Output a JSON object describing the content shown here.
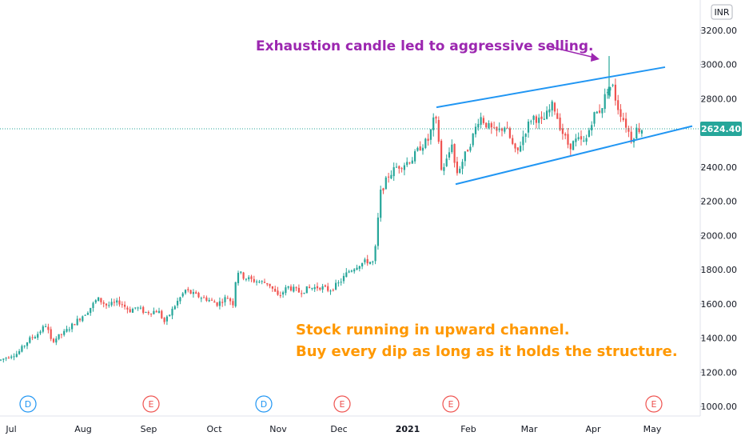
{
  "chart_data": {
    "type": "candlestick",
    "currency": "INR",
    "last_price": 2624.4,
    "last_price_label": "2624.40",
    "ylim": [
      920,
      3290
    ],
    "y_ticks": [
      {
        "value": 1000,
        "label": "1000.00"
      },
      {
        "value": 1200,
        "label": "1200.00"
      },
      {
        "value": 1400,
        "label": "1400.00"
      },
      {
        "value": 1600,
        "label": "1600.00"
      },
      {
        "value": 1800,
        "label": "1800.00"
      },
      {
        "value": 2000,
        "label": "2000.00"
      },
      {
        "value": 2200,
        "label": "2200.00"
      },
      {
        "value": 2400,
        "label": "2400.00"
      },
      {
        "value": 2800,
        "label": "2800.00"
      },
      {
        "value": 3000,
        "label": "3000.00"
      },
      {
        "value": 3200,
        "label": "3200.00"
      }
    ],
    "x_ticks": [
      {
        "label": "Jul",
        "bold": false
      },
      {
        "label": "Aug",
        "bold": false
      },
      {
        "label": "Sep",
        "bold": false
      },
      {
        "label": "Oct",
        "bold": false
      },
      {
        "label": "Nov",
        "bold": false
      },
      {
        "label": "Dec",
        "bold": false
      },
      {
        "label": "2021",
        "bold": true
      },
      {
        "label": "Feb",
        "bold": false
      },
      {
        "label": "Mar",
        "bold": false
      },
      {
        "label": "Apr",
        "bold": false
      },
      {
        "label": "May",
        "bold": false
      }
    ],
    "events": [
      {
        "label": "D",
        "kind": "dividend"
      },
      {
        "label": "E",
        "kind": "earnings"
      },
      {
        "label": "D",
        "kind": "dividend"
      },
      {
        "label": "E",
        "kind": "earnings"
      },
      {
        "label": "E",
        "kind": "earnings"
      },
      {
        "label": "E",
        "kind": "earnings"
      }
    ],
    "price_path": [
      [
        0,
        1270
      ],
      [
        14,
        1300
      ],
      [
        22,
        1310
      ],
      [
        36,
        1390
      ],
      [
        46,
        1420
      ],
      [
        58,
        1480
      ],
      [
        64,
        1380
      ],
      [
        80,
        1430
      ],
      [
        96,
        1500
      ],
      [
        110,
        1560
      ],
      [
        122,
        1630
      ],
      [
        134,
        1590
      ],
      [
        150,
        1610
      ],
      [
        162,
        1560
      ],
      [
        170,
        1580
      ],
      [
        182,
        1550
      ],
      [
        198,
        1560
      ],
      [
        206,
        1490
      ],
      [
        220,
        1600
      ],
      [
        232,
        1680
      ],
      [
        244,
        1650
      ],
      [
        258,
        1630
      ],
      [
        272,
        1600
      ],
      [
        284,
        1640
      ],
      [
        292,
        1600
      ],
      [
        296,
        1800
      ],
      [
        304,
        1760
      ],
      [
        314,
        1740
      ],
      [
        324,
        1730
      ],
      [
        336,
        1720
      ],
      [
        348,
        1640
      ],
      [
        360,
        1700
      ],
      [
        374,
        1670
      ],
      [
        386,
        1690
      ],
      [
        400,
        1700
      ],
      [
        412,
        1680
      ],
      [
        424,
        1720
      ],
      [
        436,
        1790
      ],
      [
        448,
        1830
      ],
      [
        460,
        1850
      ],
      [
        468,
        1840
      ],
      [
        472,
        2050
      ],
      [
        476,
        2250
      ],
      [
        486,
        2350
      ],
      [
        496,
        2400
      ],
      [
        506,
        2420
      ],
      [
        516,
        2450
      ],
      [
        526,
        2520
      ],
      [
        536,
        2560
      ],
      [
        544,
        2700
      ],
      [
        548,
        2600
      ],
      [
        552,
        2380
      ],
      [
        560,
        2450
      ],
      [
        566,
        2560
      ],
      [
        570,
        2350
      ],
      [
        578,
        2430
      ],
      [
        590,
        2560
      ],
      [
        600,
        2700
      ],
      [
        610,
        2640
      ],
      [
        620,
        2600
      ],
      [
        632,
        2640
      ],
      [
        646,
        2470
      ],
      [
        656,
        2600
      ],
      [
        666,
        2700
      ],
      [
        678,
        2660
      ],
      [
        692,
        2770
      ],
      [
        702,
        2620
      ],
      [
        712,
        2520
      ],
      [
        722,
        2560
      ],
      [
        732,
        2540
      ],
      [
        742,
        2700
      ],
      [
        752,
        2740
      ],
      [
        760,
        2860
      ],
      [
        766,
        2880
      ],
      [
        772,
        2760
      ],
      [
        782,
        2660
      ],
      [
        790,
        2560
      ],
      [
        796,
        2620
      ],
      [
        804,
        2624
      ]
    ],
    "special_candles": [
      {
        "x": 762,
        "o": 2820,
        "c": 2870,
        "h": 3050,
        "l": 2800
      }
    ],
    "channel_upper": {
      "start": {
        "x": 546,
        "y": 2750
      },
      "end": {
        "x": 832,
        "y": 2985
      }
    },
    "channel_lower": {
      "start": {
        "x": 570,
        "y": 2300
      },
      "end": {
        "x": 866,
        "y": 2640
      }
    },
    "annotations": [
      {
        "text": "Exhaustion candle led to aggressive selling.",
        "color": "#9c27b0"
      },
      {
        "text": "Stock running in upward channel.",
        "color": "#ff9800"
      },
      {
        "text": "Buy every dip as long as it holds the structure.",
        "color": "#ff9800"
      }
    ]
  },
  "colors": {
    "up": "#26a69a",
    "down": "#ef5350",
    "channel": "#2196f3",
    "price_line": "#26a69a",
    "annotation_purple": "#9c27b0",
    "annotation_orange": "#ff9800",
    "event_dividend": "#2196f3",
    "event_earnings": "#ef5350",
    "axis_text": "#131722"
  }
}
